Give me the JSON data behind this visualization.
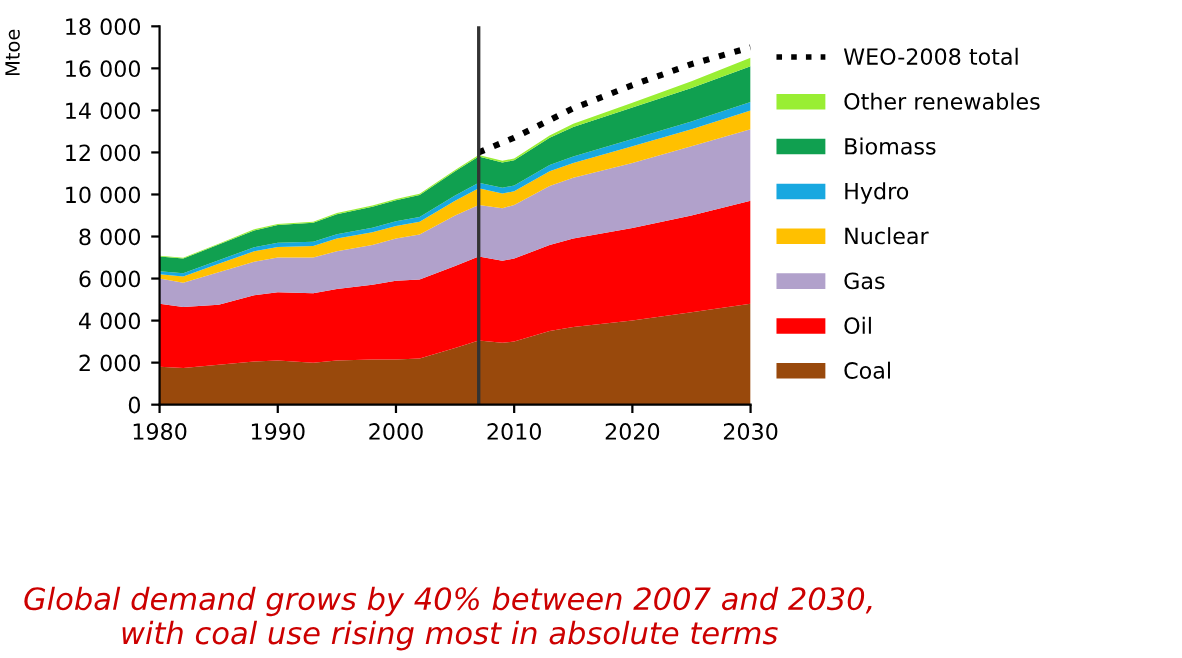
{
  "chart_data": {
    "type": "area",
    "stacked": true,
    "ylabel": "Mtoe",
    "x": [
      1980,
      1982,
      1985,
      1988,
      1990,
      1993,
      1995,
      1998,
      2000,
      2002,
      2005,
      2007,
      2009,
      2010,
      2013,
      2015,
      2020,
      2025,
      2030
    ],
    "series": [
      {
        "name": "Coal",
        "color": "#99490c",
        "values": [
          1800,
          1750,
          1900,
          2050,
          2100,
          2000,
          2100,
          2150,
          2150,
          2200,
          2700,
          3050,
          2950,
          3000,
          3500,
          3700,
          4000,
          4400,
          4800
        ]
      },
      {
        "name": "Oil",
        "color": "#ff0000",
        "values": [
          3000,
          2900,
          2850,
          3150,
          3250,
          3300,
          3400,
          3550,
          3750,
          3750,
          3900,
          4000,
          3900,
          3950,
          4100,
          4200,
          4400,
          4600,
          4900
        ]
      },
      {
        "name": "Gas",
        "color": "#b1a1cb",
        "values": [
          1200,
          1150,
          1550,
          1600,
          1650,
          1700,
          1800,
          1900,
          2000,
          2150,
          2400,
          2450,
          2500,
          2550,
          2800,
          2900,
          3100,
          3300,
          3400
        ]
      },
      {
        "name": "Nuclear",
        "color": "#ffc000",
        "values": [
          200,
          300,
          400,
          500,
          500,
          550,
          600,
          600,
          600,
          600,
          700,
          800,
          700,
          650,
          700,
          700,
          800,
          800,
          900
        ]
      },
      {
        "name": "Hydro",
        "color": "#18a8e0",
        "values": [
          150,
          150,
          170,
          190,
          200,
          200,
          210,
          220,
          230,
          230,
          250,
          260,
          270,
          275,
          300,
          310,
          340,
          370,
          400
        ]
      },
      {
        "name": "Biomass",
        "color": "#10a050",
        "values": [
          700,
          700,
          750,
          800,
          850,
          900,
          950,
          1000,
          1000,
          1050,
          1150,
          1250,
          1200,
          1200,
          1300,
          1400,
          1500,
          1600,
          1700
        ]
      },
      {
        "name": "Other renewables",
        "color": "#99ee33",
        "values": [
          40,
          40,
          40,
          50,
          50,
          50,
          60,
          60,
          60,
          60,
          70,
          70,
          80,
          90,
          110,
          150,
          220,
          320,
          400
        ]
      },
      {
        "name": "WEO-2008 total",
        "type": "line",
        "color": "#000000",
        "line_style": "dotted",
        "x": [
          2007,
          2010,
          2015,
          2020,
          2025,
          2030
        ],
        "values": [
          12000,
          12700,
          14100,
          15200,
          16200,
          17000
        ]
      }
    ],
    "xlim": [
      1980,
      2030
    ],
    "xticks": [
      1980,
      1990,
      2000,
      2010,
      2020,
      2030
    ],
    "ylim": [
      0,
      18000
    ],
    "yticks": [
      0,
      {
        "value": 2000,
        "label": "2 000"
      },
      {
        "value": 4000,
        "label": "4 000"
      },
      {
        "value": 6000,
        "label": "6 000"
      },
      {
        "value": 8000,
        "label": "8 000"
      },
      {
        "value": 10000,
        "label": "10 000"
      },
      {
        "value": 12000,
        "label": "12 000"
      },
      {
        "value": 14000,
        "label": "14 000"
      },
      {
        "value": 16000,
        "label": "16 000"
      },
      {
        "value": 18000,
        "label": "18 000"
      }
    ],
    "ref_lines": [
      {
        "axis": "x",
        "value": 2007,
        "color": "#333333"
      }
    ],
    "grid": false,
    "legend": "right",
    "annotations": [
      "Global demand grows by 40% between 2007 and 2030,\nwith coal use rising most in absolute terms"
    ]
  }
}
